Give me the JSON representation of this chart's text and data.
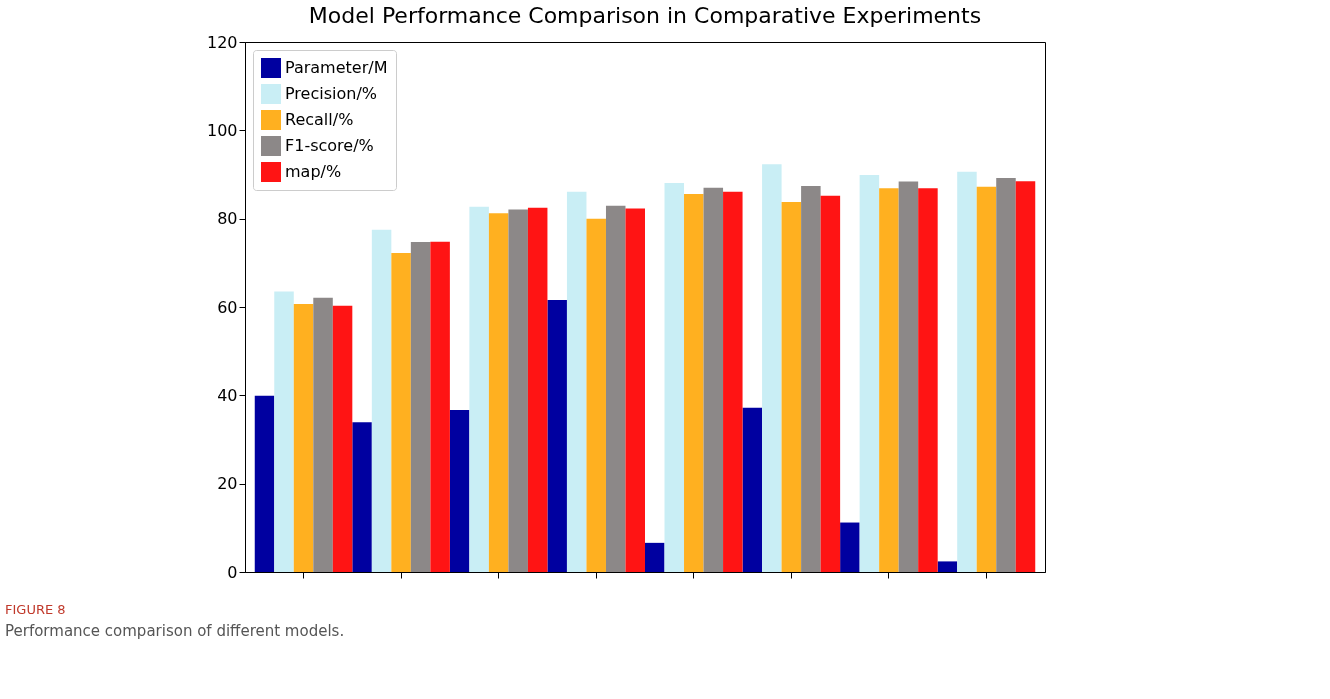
{
  "chart_data": {
    "type": "bar",
    "title": "Model Performance Comparison in Comparative Experiments",
    "categories": [
      null,
      null,
      null,
      null,
      null,
      null,
      null,
      null
    ],
    "series": [
      {
        "name": "Parameter/M",
        "color": "#0000a0",
        "values": [
          39.9,
          33.9,
          36.7,
          61.6,
          6.6,
          37.2,
          11.2,
          2.4
        ]
      },
      {
        "name": "Precision/%",
        "color": "#c9eef5",
        "values": [
          63.5,
          77.5,
          82.7,
          86.1,
          88.1,
          92.3,
          89.9,
          90.6
        ]
      },
      {
        "name": "Recall/%",
        "color": "#ffb020",
        "values": [
          60.7,
          72.2,
          81.2,
          80.0,
          85.6,
          83.8,
          86.9,
          87.2
        ]
      },
      {
        "name": "F1-score/%",
        "color": "#8c8888",
        "values": [
          62.1,
          74.7,
          82.1,
          82.9,
          87.0,
          87.4,
          88.4,
          89.2
        ]
      },
      {
        "name": "map/%",
        "color": "#ff1414",
        "values": [
          60.3,
          74.8,
          82.5,
          82.3,
          86.1,
          85.2,
          86.9,
          88.5
        ]
      }
    ],
    "ylim": [
      0,
      120
    ],
    "yticks": [
      0,
      20,
      40,
      60,
      80,
      100,
      120
    ],
    "grid": false,
    "legend": "top left",
    "annotations": [
      "FIGURE 8",
      "Performance comparison of different models."
    ]
  }
}
